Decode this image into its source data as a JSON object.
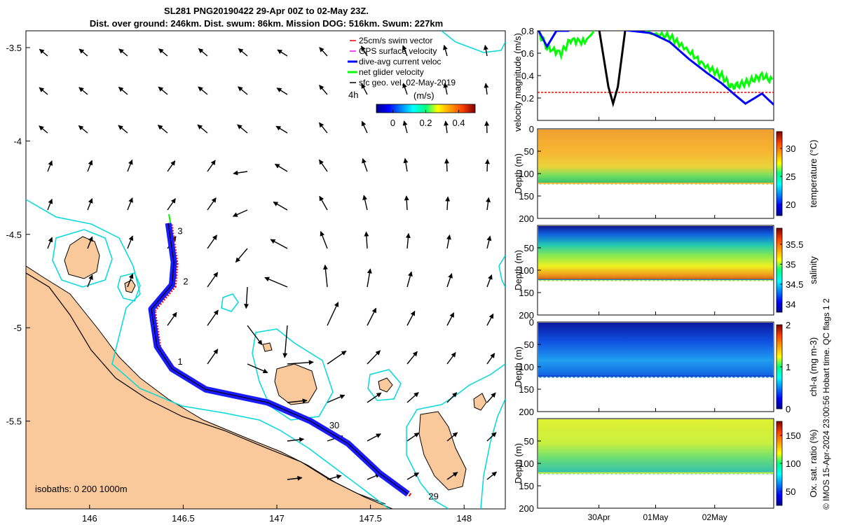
{
  "title_line1": "SL281 PNG20190422 29-Apr 00Z to 02-May 23Z.",
  "title_line2": "Dist. over ground: 246km. Dist. swum: 86km. Mission DOG: 516km. Swum: 227km",
  "credit": "© IMOS 15-Apr-2024 23:00:56 Hobart time. QC flags 1  2",
  "chart_data": [
    {
      "type": "map",
      "name": "glider-track-map",
      "x_ticks": [
        "146",
        "146.5",
        "147",
        "147.5",
        "148"
      ],
      "y_ticks": [
        "-3.5",
        "-4",
        "-4.5",
        "-5",
        "-5.5"
      ],
      "xlim": [
        145.66,
        148.22
      ],
      "ylim": [
        -5.97,
        -3.41
      ],
      "isobaths_label": "isobaths: 0   200  1000m",
      "legend": [
        {
          "label": "25cm/s swim vector",
          "color": "#ff0000"
        },
        {
          "label": "GPS surface velocity",
          "color": "#ff00ff"
        },
        {
          "label": "dive-avg current veloc",
          "color": "#0000ff"
        },
        {
          "label": "net glider velocity",
          "color": "#00ff00"
        },
        {
          "label": "sfc geo. vel. 02-May-2019",
          "color": "#000000"
        }
      ],
      "colorbar": {
        "label": "(m/s)",
        "ticks": [
          "0",
          "0.2",
          "0.4"
        ],
        "range": [
          -0.1,
          0.5
        ],
        "extra_label": "4h"
      },
      "day_markers": [
        {
          "label": "3",
          "lon": 146.41,
          "lat": -4.48
        },
        {
          "label": "2",
          "lon": 146.44,
          "lat": -4.75
        },
        {
          "label": "1",
          "lon": 146.41,
          "lat": -5.18
        },
        {
          "label": "30",
          "lon": 147.22,
          "lat": -5.52
        },
        {
          "label": "29",
          "lon": 147.75,
          "lat": -5.9
        }
      ],
      "track": [
        [
          146.42,
          -4.44
        ],
        [
          146.45,
          -4.65
        ],
        [
          146.44,
          -4.77
        ],
        [
          146.33,
          -4.9
        ],
        [
          146.36,
          -5.1
        ],
        [
          146.44,
          -5.22
        ],
        [
          146.62,
          -5.33
        ],
        [
          146.95,
          -5.4
        ],
        [
          147.18,
          -5.5
        ],
        [
          147.38,
          -5.62
        ],
        [
          147.55,
          -5.78
        ],
        [
          147.7,
          -5.89
        ]
      ]
    },
    {
      "type": "line",
      "name": "velocity-magnitude",
      "ylabel": "velocity magnitude (m/s)",
      "ylim": [
        0,
        0.8
      ],
      "yticks": [
        "0.2",
        "0.4",
        "0.6",
        "0.8"
      ],
      "series": [
        {
          "name": "25cm/s swim vector",
          "color": "#ff0000",
          "values": [
            [
              0,
              0.25
            ],
            [
              1,
              0.25
            ]
          ]
        },
        {
          "name": "net glider velocity",
          "color": "#00ff00",
          "values": [
            [
              0.0,
              0.8
            ],
            [
              0.04,
              0.65
            ],
            [
              0.1,
              0.6
            ],
            [
              0.14,
              0.72
            ],
            [
              0.2,
              0.7
            ],
            [
              0.28,
              0.9
            ],
            [
              0.47,
              0.78
            ],
            [
              0.56,
              0.75
            ],
            [
              0.64,
              0.62
            ],
            [
              0.7,
              0.5
            ],
            [
              0.78,
              0.4
            ],
            [
              0.82,
              0.3
            ],
            [
              0.86,
              0.32
            ],
            [
              0.9,
              0.35
            ],
            [
              0.95,
              0.4
            ],
            [
              1.0,
              0.35
            ]
          ]
        },
        {
          "name": "dive-avg current veloc",
          "color": "#0000ff",
          "values": [
            [
              0.0,
              0.82
            ],
            [
              0.04,
              0.66
            ],
            [
              0.08,
              0.8
            ],
            [
              0.13,
              0.8
            ],
            [
              0.18,
              0.85
            ],
            [
              0.48,
              0.78
            ],
            [
              0.56,
              0.7
            ],
            [
              0.64,
              0.55
            ],
            [
              0.72,
              0.42
            ],
            [
              0.78,
              0.33
            ],
            [
              0.84,
              0.22
            ],
            [
              0.88,
              0.15
            ],
            [
              0.92,
              0.2
            ],
            [
              0.95,
              0.24
            ],
            [
              0.97,
              0.2
            ],
            [
              1.0,
              0.14
            ]
          ]
        },
        {
          "name": "GPS surface velocity",
          "color": "#000000",
          "values": [
            [
              0.25,
              0.95
            ],
            [
              0.3,
              0.3
            ],
            [
              0.32,
              0.15
            ],
            [
              0.34,
              0.3
            ],
            [
              0.38,
              0.95
            ]
          ]
        }
      ]
    },
    {
      "type": "heatmap",
      "name": "temperature-section",
      "ylabel": "Depth (m)",
      "colorbar_label": "temperature (°C)",
      "yticks": [
        "0",
        "50",
        "100",
        "150",
        "200"
      ],
      "cticks": [
        "30",
        "25",
        "20"
      ],
      "crange": [
        18,
        33
      ]
    },
    {
      "type": "heatmap",
      "name": "salinity-section",
      "ylabel": "Depth (m)",
      "colorbar_label": "salinity",
      "yticks": [
        "50",
        "100",
        "150",
        "200"
      ],
      "cticks": [
        "35.5",
        "35",
        "34.5",
        "34"
      ],
      "crange": [
        33.8,
        35.9
      ]
    },
    {
      "type": "heatmap",
      "name": "chla-section",
      "ylabel": "Depth (m)",
      "colorbar_label": "chl-a (mg m-3)",
      "yticks": [
        "0",
        "50",
        "100",
        "150",
        "200"
      ],
      "cticks": [
        "2",
        "1",
        "0"
      ],
      "crange": [
        0,
        2
      ]
    },
    {
      "type": "heatmap",
      "name": "oxygen-section",
      "ylabel": "Depth (m)",
      "colorbar_label": "Ox. sat. ratio (%)",
      "yticks": [
        "50",
        "100",
        "150",
        "200"
      ],
      "cticks": [
        "150",
        "100",
        "50"
      ],
      "crange": [
        25,
        175
      ],
      "x_ticks": [
        "30Apr",
        "01May",
        "02May"
      ]
    }
  ]
}
